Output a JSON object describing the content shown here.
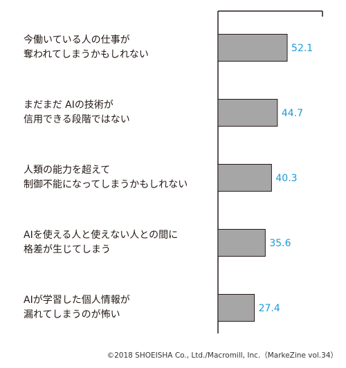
{
  "chart_data": {
    "type": "bar",
    "orientation": "horizontal",
    "categories": [
      [
        "今働いている人の仕事が",
        "奪われてしまうかもしれない"
      ],
      [
        "まだまだ AIの技術が",
        "信用できる段階ではない"
      ],
      [
        "人類の能力を超えて",
        "制御不能になってしまうかもしれない"
      ],
      [
        "AIを使える人と使えない人との間に",
        "格差が生じてしまう"
      ],
      [
        "AIが学習した個人情報が",
        "漏れてしまうのが怖い"
      ]
    ],
    "values": [
      52.1,
      44.7,
      40.3,
      35.6,
      27.4
    ],
    "xlim": [
      0,
      100
    ],
    "grid": false,
    "title": "",
    "xlabel": "",
    "ylabel": ""
  },
  "colors": {
    "bar_fill": "#a6a6a6",
    "bar_stroke": "#231815",
    "value_label": "#1a9ad6",
    "axis": "#231815",
    "category_text": "#231815"
  },
  "footer": {
    "credit": "©2018 SHOEISHA Co., Ltd./Macromill, Inc.（MarkeZine vol.34）"
  }
}
